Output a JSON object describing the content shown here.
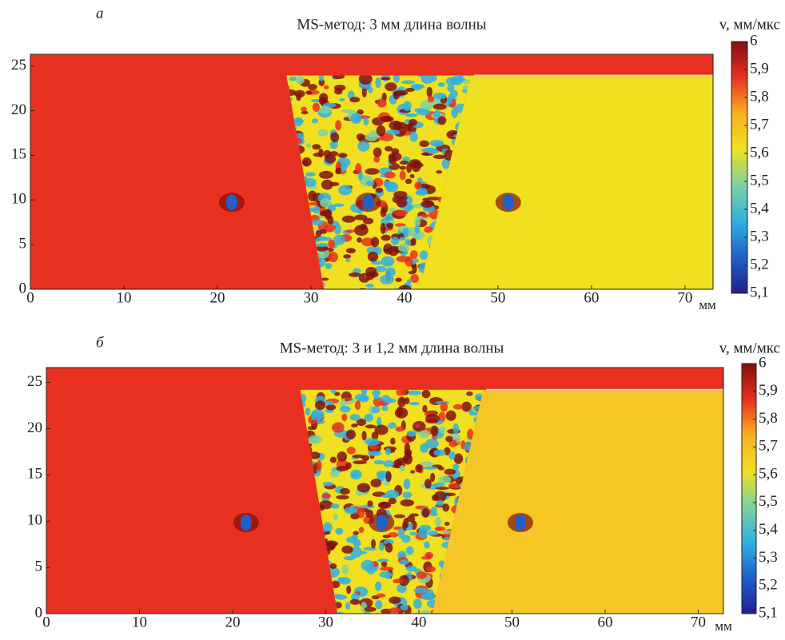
{
  "chart_data": [
    {
      "type": "heatmap",
      "panel": "а",
      "title": "MS-метод: 3 мм длина волны",
      "colorbar_label": "v, мм/мкс",
      "x_unit": "мм",
      "xlim": [
        0,
        73
      ],
      "xticks": [
        0,
        10,
        20,
        30,
        40,
        50,
        60,
        70
      ],
      "ylim": [
        0,
        26.3
      ],
      "yticks": [
        0,
        5,
        10,
        15,
        20,
        25
      ],
      "zlim": [
        5.1,
        6
      ],
      "zticks": [
        {
          "value": 5.1,
          "label": "5,1"
        },
        {
          "value": 5.2,
          "label": "5,2"
        },
        {
          "value": 5.3,
          "label": "5,3"
        },
        {
          "value": 5.4,
          "label": "5,4"
        },
        {
          "value": 5.5,
          "label": "5,5"
        },
        {
          "value": 5.6,
          "label": "5,6"
        },
        {
          "value": 5.7,
          "label": "5,7"
        },
        {
          "value": 5.8,
          "label": "5,8"
        },
        {
          "value": 5.9,
          "label": "5,9"
        },
        6
      ],
      "colormap": [
        "#20208a",
        "#2060c8",
        "#30b0e0",
        "#80d0a0",
        "#f0e020",
        "#f8b020",
        "#e83020",
        "#801010"
      ]
    },
    {
      "type": "heatmap",
      "panel": "б",
      "title": "MS-метод: 3 и 1,2 мм длина волны",
      "colorbar_label": "v, мм/мкс",
      "x_unit": "мм",
      "xlim": [
        0,
        72.7
      ],
      "xticks": [
        0,
        10,
        20,
        30,
        40,
        50,
        60,
        70
      ],
      "ylim": [
        0,
        26.6
      ],
      "yticks": [
        0,
        5,
        10,
        15,
        20,
        25
      ],
      "zlim": [
        5.1,
        6
      ],
      "zticks": [
        {
          "value": 5.1,
          "label": "5,1"
        },
        {
          "value": 5.2,
          "label": "5,2"
        },
        {
          "value": 5.3,
          "label": "5,3"
        },
        {
          "value": 5.4,
          "label": "5,4"
        },
        {
          "value": 5.5,
          "label": "5,5"
        },
        {
          "value": 5.6,
          "label": "5,6"
        },
        {
          "value": 5.7,
          "label": "5,7"
        },
        {
          "value": 5.8,
          "label": "5,8"
        },
        {
          "value": 5.9,
          "label": "5,9"
        },
        6
      ],
      "colormap": [
        "#20208a",
        "#2060c8",
        "#30b0e0",
        "#80d0a0",
        "#f0e020",
        "#f8b020",
        "#e83020",
        "#801010"
      ]
    }
  ]
}
